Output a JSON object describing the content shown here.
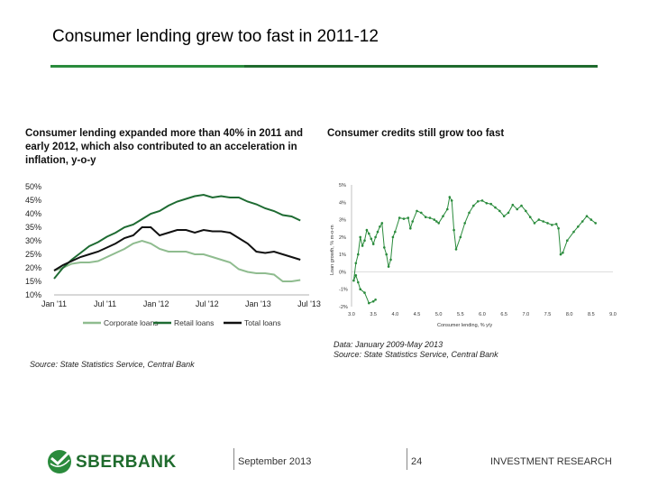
{
  "slide": {
    "title": "Consumer lending grew too fast in 2011-12",
    "left_caption": "Consumer lending expanded more than 40% in 2011 and early 2012, which also contributed to an acceleration in inflation, y-o-y",
    "right_caption": "Consumer credits still grow too fast",
    "left_source": "Source: State Statistics Service, Central Bank",
    "right_source_line1": "Data: January 2009-May 2013",
    "right_source_line2": "Source: State Statistics Service, Central Bank",
    "footer_date": "September 2013",
    "footer_page": "24",
    "footer_section": "INVESTMENT RESEARCH",
    "logo_text": "SBERBANK",
    "colors": {
      "accent": "#2a8b3c",
      "dark_green": "#1f6b2d",
      "light_green": "#8fbc8f",
      "retail_green": "#1e6b32",
      "total_black": "#111111"
    }
  },
  "chart_data": [
    {
      "type": "line",
      "title": "",
      "xlabel": "",
      "ylabel": "",
      "x_ticks": [
        "Jan '11",
        "Jul '11",
        "Jan '12",
        "Jul '12",
        "Jan '13",
        "Jul '13"
      ],
      "y_ticks": [
        "50%",
        "45%",
        "40%",
        "35%",
        "30%",
        "25%",
        "20%",
        "15%",
        "10%"
      ],
      "ylim": [
        10,
        50
      ],
      "x_months": [
        0,
        1,
        2,
        3,
        4,
        5,
        6,
        7,
        8,
        9,
        10,
        11,
        12,
        13,
        14,
        15,
        16,
        17,
        18,
        19,
        20,
        21,
        22,
        23,
        24,
        25,
        26,
        27,
        28,
        29
      ],
      "legend_position": "bottom",
      "series": [
        {
          "name": "Corporate loans",
          "color": "#8fbc8f",
          "values": [
            19,
            20,
            21.5,
            22,
            22,
            22.5,
            24,
            25.5,
            27,
            29,
            30,
            29,
            27,
            26,
            26,
            26,
            25,
            25,
            24,
            23,
            22,
            19.5,
            18.5,
            18,
            18,
            17.5,
            15,
            15,
            15.5,
            null
          ]
        },
        {
          "name": "Retail loans",
          "color": "#1e6b32",
          "values": [
            16,
            20,
            23,
            25.5,
            28,
            29.5,
            31.5,
            33,
            35,
            36,
            38,
            40,
            41,
            43,
            44.5,
            45.5,
            46.5,
            47,
            46,
            46.5,
            46,
            46,
            44.5,
            43.5,
            42,
            41,
            39.5,
            39,
            37.5,
            null
          ]
        },
        {
          "name": "Total loans",
          "color": "#111111",
          "values": [
            19,
            21,
            22.5,
            24,
            25,
            26,
            27.5,
            29,
            31,
            32,
            35,
            35,
            32,
            33,
            34,
            34,
            33,
            34,
            33.5,
            33.5,
            33,
            31,
            29,
            26,
            25.5,
            26,
            25,
            24,
            23,
            null
          ]
        }
      ]
    },
    {
      "type": "scatter",
      "title": "",
      "xlabel": "Consumer lending, % y/y",
      "ylabel": "Loan growth, % m-o-m",
      "x_ticks": [
        "3.0",
        "3.5",
        "4.0",
        "4.5",
        "5.0",
        "5.5",
        "6.0",
        "6.5",
        "7.0",
        "7.5",
        "8.0",
        "8.5",
        "9.0"
      ],
      "y_ticks": [
        "5%",
        "4%",
        "3%",
        "2%",
        "1%",
        "0%",
        "-1%",
        "-2%"
      ],
      "xlim": [
        3.0,
        9.0
      ],
      "ylim": [
        -2,
        5
      ],
      "connected": true,
      "color": "#2a8b3c",
      "points": [
        [
          3.55,
          -1.6
        ],
        [
          3.5,
          -1.7
        ],
        [
          3.4,
          -1.8
        ],
        [
          3.3,
          -1.2
        ],
        [
          3.2,
          -1.0
        ],
        [
          3.15,
          -0.6
        ],
        [
          3.1,
          -0.2
        ],
        [
          3.05,
          -0.5
        ],
        [
          3.1,
          0.5
        ],
        [
          3.15,
          1.0
        ],
        [
          3.2,
          2.0
        ],
        [
          3.25,
          1.5
        ],
        [
          3.3,
          1.8
        ],
        [
          3.35,
          2.4
        ],
        [
          3.4,
          2.2
        ],
        [
          3.45,
          1.9
        ],
        [
          3.5,
          1.6
        ],
        [
          3.55,
          2.0
        ],
        [
          3.6,
          2.3
        ],
        [
          3.65,
          2.6
        ],
        [
          3.7,
          2.8
        ],
        [
          3.75,
          1.4
        ],
        [
          3.8,
          1.0
        ],
        [
          3.85,
          0.3
        ],
        [
          3.9,
          0.7
        ],
        [
          3.95,
          2.0
        ],
        [
          4.0,
          2.3
        ],
        [
          4.1,
          3.1
        ],
        [
          4.2,
          3.05
        ],
        [
          4.3,
          3.1
        ],
        [
          4.35,
          2.5
        ],
        [
          4.4,
          2.9
        ],
        [
          4.5,
          3.5
        ],
        [
          4.6,
          3.4
        ],
        [
          4.7,
          3.15
        ],
        [
          4.8,
          3.1
        ],
        [
          4.9,
          3.0
        ],
        [
          4.95,
          2.9
        ],
        [
          5.0,
          2.8
        ],
        [
          5.1,
          3.2
        ],
        [
          5.2,
          3.6
        ],
        [
          5.25,
          4.3
        ],
        [
          5.3,
          4.1
        ],
        [
          5.35,
          2.4
        ],
        [
          5.4,
          1.3
        ],
        [
          5.5,
          2.0
        ],
        [
          5.6,
          2.8
        ],
        [
          5.7,
          3.4
        ],
        [
          5.8,
          3.8
        ],
        [
          5.9,
          4.05
        ],
        [
          6.0,
          4.1
        ],
        [
          6.1,
          3.95
        ],
        [
          6.2,
          3.9
        ],
        [
          6.3,
          3.7
        ],
        [
          6.4,
          3.5
        ],
        [
          6.5,
          3.2
        ],
        [
          6.6,
          3.4
        ],
        [
          6.7,
          3.85
        ],
        [
          6.8,
          3.6
        ],
        [
          6.9,
          3.8
        ],
        [
          7.0,
          3.5
        ],
        [
          7.1,
          3.15
        ],
        [
          7.2,
          2.8
        ],
        [
          7.3,
          3.0
        ],
        [
          7.4,
          2.9
        ],
        [
          7.5,
          2.8
        ],
        [
          7.6,
          2.7
        ],
        [
          7.7,
          2.75
        ],
        [
          7.75,
          2.5
        ],
        [
          7.8,
          1.0
        ],
        [
          7.85,
          1.1
        ],
        [
          7.95,
          1.8
        ],
        [
          8.1,
          2.3
        ],
        [
          8.2,
          2.6
        ],
        [
          8.3,
          2.9
        ],
        [
          8.4,
          3.2
        ],
        [
          8.5,
          3.0
        ],
        [
          8.6,
          2.8
        ]
      ]
    }
  ]
}
